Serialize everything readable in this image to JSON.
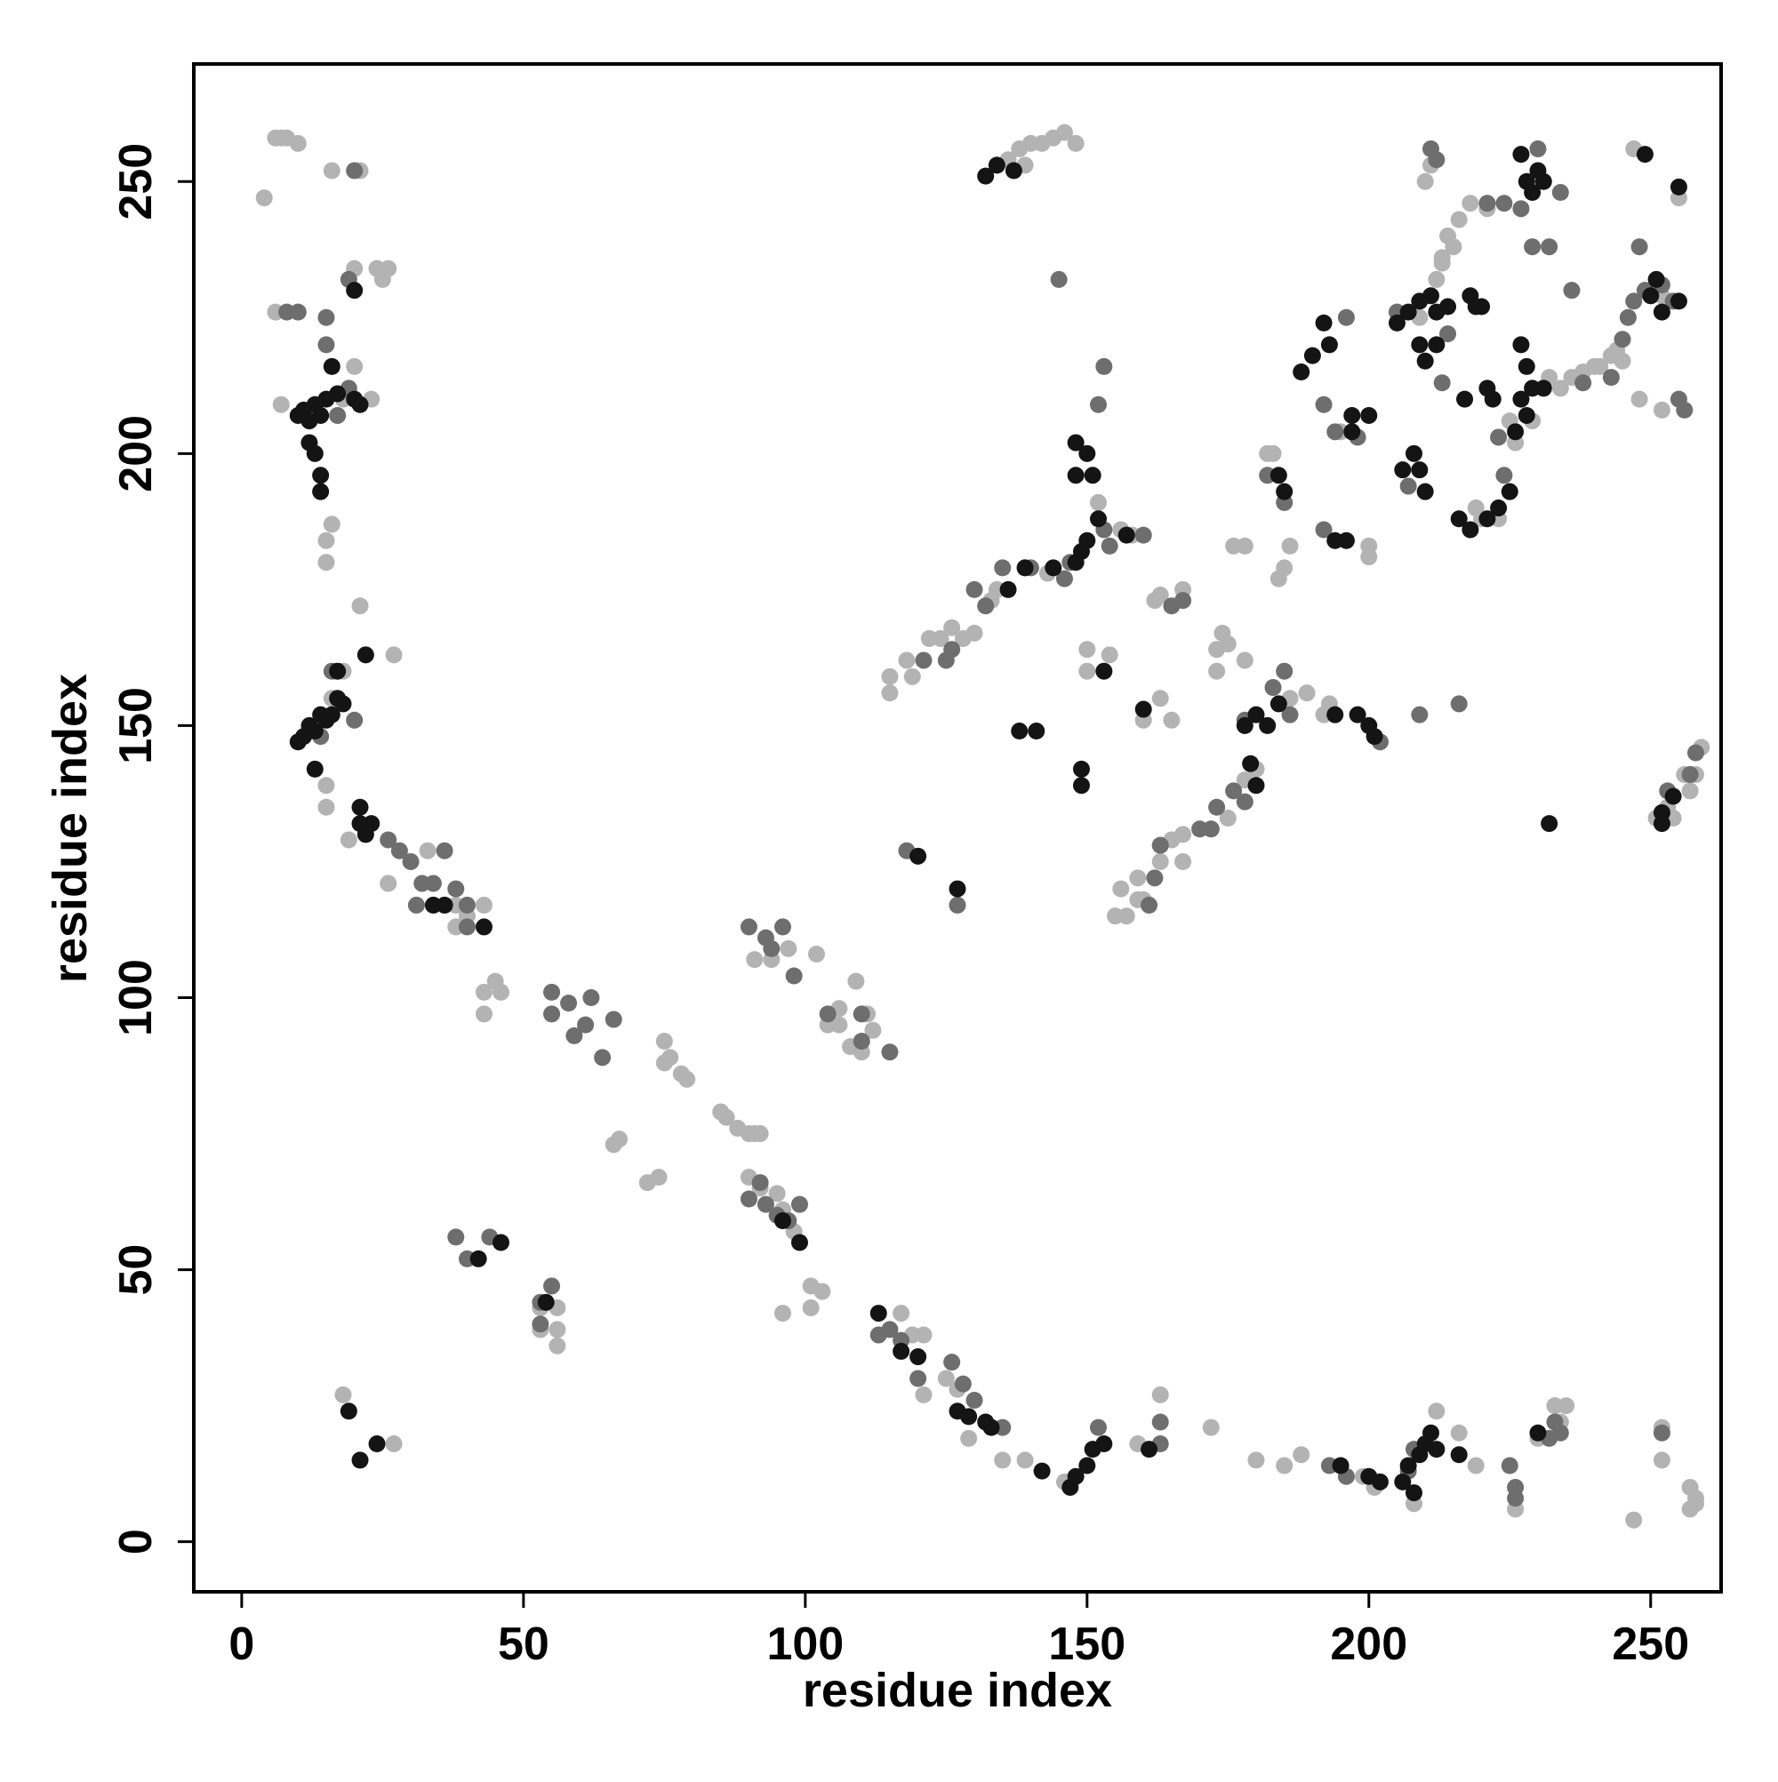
{
  "chart_data": {
    "type": "scatter",
    "x_label": "residue index",
    "y_label": "residue index",
    "xlim": [
      -8.5,
      262.5
    ],
    "ylim": [
      -9.2,
      271.6
    ],
    "xticks": [
      0,
      50,
      100,
      150,
      200,
      250
    ],
    "yticks": [
      0,
      50,
      100,
      150,
      200,
      250
    ],
    "grid": false,
    "series": [
      {
        "color": "#b3b3b3",
        "x": [
          4,
          6,
          7,
          8,
          10,
          6,
          7,
          16,
          21,
          24,
          26,
          25,
          20,
          20,
          18,
          23,
          15,
          16,
          15,
          21,
          27,
          16,
          18,
          15,
          15,
          19,
          26,
          33,
          38,
          38,
          40,
          43,
          43,
          45,
          46,
          43,
          18,
          27,
          53,
          56,
          56,
          56,
          53,
          75,
          75,
          76,
          78,
          79,
          85,
          86,
          88,
          90,
          91,
          92,
          66,
          67,
          72,
          74,
          90,
          92,
          95,
          96,
          98,
          96,
          101,
          101,
          103,
          91,
          94,
          97,
          102,
          106,
          106,
          108,
          109,
          111,
          112,
          104,
          110,
          117,
          119,
          121,
          121,
          125,
          127,
          129,
          135,
          139,
          146,
          159,
          163,
          172,
          180,
          185,
          188,
          199,
          201,
          208,
          212,
          216,
          219,
          226,
          230,
          235,
          233,
          234,
          247,
          252,
          252,
          257,
          258,
          257,
          258,
          134,
          136,
          138,
          140,
          142,
          144,
          146,
          148,
          139,
          115,
          115,
          118,
          119,
          122,
          124,
          126,
          128,
          130,
          133,
          134,
          139,
          143,
          152,
          156,
          158,
          150,
          150,
          154,
          160,
          163,
          165,
          162,
          163,
          167,
          174,
          175,
          173,
          176,
          178,
          173,
          178,
          182,
          186,
          189,
          155,
          156,
          157,
          159,
          160,
          159,
          163,
          165,
          167,
          167,
          163,
          180,
          178,
          175,
          172,
          182,
          183,
          184,
          185,
          186,
          192,
          193,
          195,
          200,
          200,
          209,
          212,
          213,
          213,
          214,
          215,
          216,
          218,
          219,
          220,
          223,
          225,
          226,
          229,
          232,
          234,
          236,
          238,
          240,
          245,
          248,
          252,
          255,
          247,
          210,
          211,
          221,
          252,
          258,
          259,
          256,
          257,
          254,
          253,
          251,
          241,
          243,
          244
        ],
        "values": [
          247,
          258,
          258,
          258,
          257,
          226,
          209,
          252,
          252,
          234,
          234,
          232,
          234,
          216,
          210,
          210,
          184,
          187,
          180,
          172,
          163,
          155,
          160,
          139,
          135,
          129,
          121,
          127,
          113,
          117,
          115,
          117,
          101,
          103,
          101,
          97,
          27,
          18,
          43,
          43,
          39,
          36,
          39,
          92,
          88,
          89,
          86,
          85,
          79,
          78,
          76,
          75,
          75,
          75,
          73,
          74,
          66,
          67,
          67,
          65,
          64,
          61,
          57,
          42,
          43,
          47,
          46,
          107,
          107,
          109,
          108,
          98,
          95,
          91,
          103,
          97,
          94,
          95,
          90,
          42,
          38,
          38,
          27,
          30,
          28,
          19,
          15,
          15,
          11,
          18,
          27,
          21,
          15,
          14,
          16,
          12,
          10,
          7,
          24,
          20,
          14,
          6,
          19,
          25,
          25,
          22,
          4,
          21,
          15,
          10,
          7,
          6,
          8,
          253,
          254,
          256,
          257,
          257,
          258,
          259,
          257,
          253,
          159,
          156,
          162,
          159,
          166,
          166,
          168,
          166,
          167,
          173,
          175,
          179,
          178,
          191,
          186,
          185,
          164,
          160,
          163,
          151,
          155,
          151,
          173,
          174,
          175,
          167,
          165,
          164,
          183,
          183,
          160,
          162,
          150,
          155,
          156,
          115,
          120,
          115,
          118,
          118,
          122,
          125,
          129,
          125,
          130,
          128,
          142,
          140,
          133,
          131,
          200,
          200,
          177,
          179,
          183,
          152,
          154,
          204,
          183,
          181,
          225,
          232,
          235,
          236,
          240,
          238,
          243,
          246,
          190,
          188,
          188,
          206,
          202,
          206,
          214,
          212,
          214,
          215,
          216,
          217,
          210,
          208,
          247,
          256,
          250,
          253,
          245,
          229,
          141,
          146,
          141,
          138,
          133,
          135,
          133,
          216,
          218,
          219
        ]
      },
      {
        "color": "#6e6e6e",
        "x": [
          8,
          10,
          15,
          15,
          20,
          19,
          17,
          19,
          16,
          20,
          14,
          26,
          28,
          30,
          32,
          34,
          36,
          31,
          38,
          40,
          40,
          53,
          55,
          53,
          38,
          40,
          44,
          55,
          55,
          58,
          59,
          61,
          62,
          64,
          66,
          90,
          93,
          96,
          94,
          98,
          104,
          110,
          110,
          115,
          90,
          92,
          93,
          95,
          97,
          99,
          113,
          115,
          117,
          120,
          126,
          128,
          130,
          135,
          152,
          163,
          163,
          193,
          196,
          207,
          225,
          226,
          232,
          252,
          130,
          132,
          121,
          125,
          126,
          135,
          140,
          147,
          146,
          153,
          160,
          154,
          167,
          165,
          170,
          172,
          173,
          176,
          178,
          183,
          185,
          186,
          163,
          162,
          161,
          118,
          127,
          145,
          153,
          152,
          178,
          185,
          192,
          194,
          198,
          196,
          192,
          182,
          202,
          209,
          216,
          205,
          207,
          213,
          221,
          224,
          223,
          224,
          227,
          229,
          230,
          232,
          234,
          236,
          245,
          247,
          248,
          249,
          254,
          255,
          256,
          252,
          246,
          238,
          243,
          211,
          212,
          214,
          253,
          257,
          258,
          226,
          233,
          234,
          208
        ],
        "values": [
          226,
          226,
          225,
          220,
          252,
          232,
          207,
          212,
          160,
          151,
          148,
          129,
          127,
          125,
          121,
          121,
          127,
          117,
          120,
          113,
          117,
          44,
          47,
          40,
          56,
          52,
          56,
          101,
          97,
          99,
          93,
          95,
          100,
          89,
          96,
          113,
          111,
          113,
          109,
          104,
          97,
          97,
          92,
          90,
          63,
          66,
          62,
          60,
          59,
          62,
          38,
          39,
          37,
          30,
          33,
          29,
          26,
          21,
          21,
          22,
          18,
          14,
          12,
          13,
          14,
          10,
          19,
          20,
          175,
          172,
          162,
          162,
          164,
          179,
          179,
          180,
          177,
          186,
          185,
          183,
          173,
          172,
          131,
          131,
          135,
          138,
          136,
          157,
          160,
          152,
          128,
          122,
          117,
          127,
          117,
          232,
          216,
          209,
          151,
          191,
          186,
          204,
          203,
          225,
          209,
          196,
          147,
          152,
          154,
          226,
          194,
          213,
          246,
          246,
          203,
          196,
          245,
          238,
          256,
          238,
          248,
          230,
          221,
          228,
          238,
          230,
          228,
          210,
          208,
          231,
          225,
          213,
          214,
          256,
          254,
          222,
          138,
          141,
          145,
          8,
          22,
          20,
          17
        ]
      },
      {
        "color": "#141414",
        "x": [
          10,
          11,
          12,
          13,
          14,
          15,
          12,
          13,
          14,
          14,
          16,
          17,
          20,
          20,
          21,
          10,
          11,
          12,
          13,
          14,
          15,
          16,
          17,
          18,
          13,
          17,
          22,
          21,
          21,
          22,
          23,
          34,
          36,
          43,
          42,
          46,
          54,
          19,
          21,
          24,
          96,
          99,
          113,
          117,
          120,
          127,
          129,
          132,
          133,
          142,
          147,
          148,
          150,
          151,
          153,
          161,
          195,
          200,
          202,
          206,
          207,
          208,
          209,
          210,
          211,
          212,
          216,
          230,
          132,
          134,
          137,
          149,
          149,
          138,
          141,
          148,
          150,
          148,
          151,
          150,
          149,
          148,
          152,
          153,
          160,
          144,
          139,
          136,
          157,
          178,
          180,
          182,
          184,
          179,
          180,
          184,
          185,
          194,
          196,
          197,
          197,
          200,
          194,
          198,
          200,
          201,
          192,
          193,
          190,
          188,
          205,
          206,
          209,
          208,
          210,
          207,
          209,
          211,
          212,
          214,
          219,
          220,
          209,
          210,
          212,
          216,
          218,
          221,
          223,
          225,
          226,
          228,
          227,
          228,
          229,
          227,
          231,
          217,
          221,
          218,
          227,
          228,
          229,
          230,
          231,
          249,
          255,
          255,
          252,
          250,
          251,
          252,
          254,
          252,
          232,
          222,
          120,
          127
        ],
        "values": [
          207,
          208,
          206,
          209,
          207,
          210,
          202,
          200,
          196,
          193,
          216,
          211,
          230,
          210,
          209,
          147,
          148,
          150,
          149,
          152,
          151,
          152,
          155,
          154,
          142,
          160,
          163,
          135,
          132,
          130,
          132,
          117,
          117,
          113,
          52,
          55,
          44,
          24,
          15,
          18,
          59,
          55,
          42,
          35,
          34,
          24,
          23,
          22,
          21,
          13,
          10,
          12,
          14,
          17,
          18,
          17,
          14,
          12,
          11,
          11,
          14,
          9,
          16,
          18,
          20,
          17,
          16,
          20,
          251,
          253,
          252,
          142,
          139,
          149,
          149,
          196,
          200,
          202,
          196,
          184,
          182,
          180,
          188,
          160,
          153,
          179,
          179,
          175,
          185,
          150,
          152,
          150,
          154,
          143,
          139,
          196,
          193,
          184,
          184,
          204,
          207,
          207,
          152,
          152,
          150,
          148,
          224,
          220,
          218,
          215,
          224,
          197,
          197,
          200,
          193,
          226,
          228,
          229,
          226,
          227,
          227,
          227,
          220,
          217,
          220,
          188,
          186,
          188,
          190,
          193,
          204,
          207,
          220,
          216,
          212,
          210,
          212,
          210,
          212,
          229,
          255,
          250,
          248,
          252,
          250,
          255,
          249,
          228,
          226,
          229,
          232,
          134,
          137,
          132,
          132,
          210,
          126,
          120
        ]
      }
    ]
  }
}
